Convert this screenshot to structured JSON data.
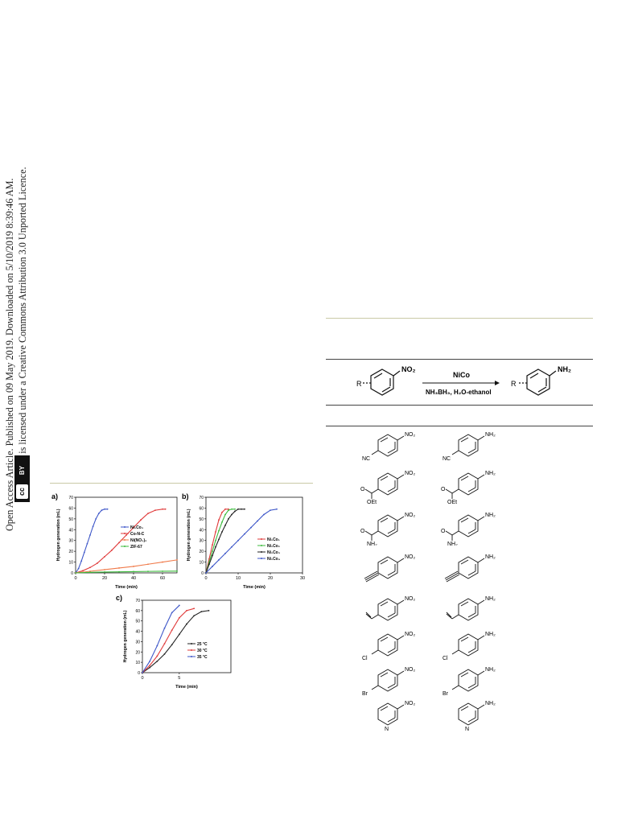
{
  "side_note": {
    "line1": "Open Access Article. Published on 09 May 2019. Downloaded on 5/10/2019 8:39:46 AM.",
    "line2": "This article is licensed under a Creative Commons Attribution 3.0 Unported Licence.",
    "badge_cc": "cc",
    "badge_by": "BY"
  },
  "colors": {
    "olive_rule": "#c9c9a6",
    "table_rule": "#444444",
    "blue": "#3d56c8",
    "red": "#e03a3a",
    "black": "#222222",
    "green": "#3dbb3d",
    "orange": "#f07a4a",
    "grey_rule": "#cccccc"
  },
  "scheme": {
    "reactant_sub": "R",
    "reactant_group": "NO₂",
    "catalyst": "NiCo",
    "conditions": "NH₃BH₃, H₂O-ethanol",
    "product_sub": "R",
    "product_group": "NH₂"
  },
  "molecules": [
    {
      "reactant_sub": "NC",
      "reactant_group": "NO₂",
      "product_sub": "NC",
      "product_group": "NH₂",
      "kind": "para"
    },
    {
      "reactant_sub": "OEt",
      "reactant_group": "NO₂",
      "product_sub": "OEt",
      "product_group": "NH₂",
      "kind": "ester"
    },
    {
      "reactant_sub": "NH₂",
      "reactant_group": "NO₂",
      "product_sub": "NH₂",
      "product_group": "NH₂",
      "kind": "amide"
    },
    {
      "reactant_sub": "",
      "reactant_group": "NO₂",
      "product_sub": "",
      "product_group": "NH₂",
      "kind": "alkyne"
    },
    {
      "reactant_sub": "",
      "reactant_group": "NO₂",
      "product_sub": "",
      "product_group": "NH₂",
      "kind": "vinyl"
    },
    {
      "reactant_sub": "Cl",
      "reactant_group": "NO₂",
      "product_sub": "Cl",
      "product_group": "NH₂",
      "kind": "para"
    },
    {
      "reactant_sub": "Br",
      "reactant_group": "NO₂",
      "product_sub": "Br",
      "product_group": "NH₂",
      "kind": "para"
    },
    {
      "reactant_sub": "N",
      "reactant_group": "NO₂",
      "product_sub": "N",
      "product_group": "NH₂",
      "kind": "pyridine"
    }
  ],
  "chart_data": [
    {
      "panel": "a)",
      "type": "line",
      "xlabel": "Time (min)",
      "ylabel": "Hydrogen generation (mL)",
      "xlim": [
        0,
        70
      ],
      "ylim": [
        0,
        70
      ],
      "xticks": [
        0,
        20,
        40,
        60
      ],
      "yticks": [
        0,
        10,
        20,
        30,
        40,
        50,
        60,
        70
      ],
      "legend_position": "right",
      "series": [
        {
          "name": "Ni₁Co₃",
          "color": "#3d56c8",
          "x": [
            0,
            2,
            4,
            6,
            8,
            10,
            12,
            14,
            16,
            18,
            20,
            22
          ],
          "y": [
            0,
            4,
            11,
            19,
            27,
            35,
            43,
            50,
            55,
            58,
            59,
            59
          ]
        },
        {
          "name": "Co-N-C",
          "color": "#e03a3a",
          "x": [
            0,
            5,
            10,
            15,
            20,
            25,
            30,
            35,
            40,
            45,
            50,
            55,
            60,
            62
          ],
          "y": [
            0,
            2,
            5,
            9,
            15,
            21,
            28,
            35,
            42,
            49,
            55,
            58,
            59,
            59
          ]
        },
        {
          "name": "Ni(NO₃)₂",
          "color": "#f07a4a",
          "x": [
            0,
            10,
            20,
            30,
            40,
            50,
            60,
            70
          ],
          "y": [
            0,
            1.5,
            3,
            4.5,
            6,
            8,
            10,
            12
          ]
        },
        {
          "name": "ZIF-67",
          "color": "#3dbb3d",
          "x": [
            0,
            10,
            20,
            30,
            40,
            50,
            60,
            70
          ],
          "y": [
            0,
            0.5,
            0.8,
            1,
            1.2,
            1.4,
            1.5,
            1.6
          ]
        }
      ]
    },
    {
      "panel": "b)",
      "type": "line",
      "xlabel": "Time (min)",
      "ylabel": "Hydrogen generation (mL)",
      "xlim": [
        0,
        30
      ],
      "ylim": [
        0,
        70
      ],
      "xticks": [
        0,
        10,
        20,
        30
      ],
      "yticks": [
        0,
        10,
        20,
        30,
        40,
        50,
        60,
        70
      ],
      "legend_position": "right",
      "series": [
        {
          "name": "Ni₁Co₁",
          "color": "#e03a3a",
          "x": [
            0,
            1,
            2,
            3,
            4,
            5,
            6,
            7
          ],
          "y": [
            0,
            13,
            26,
            38,
            49,
            56,
            59,
            59
          ]
        },
        {
          "name": "Ni₁Co₂",
          "color": "#3dbb3d",
          "x": [
            0,
            1,
            2,
            3,
            4,
            5,
            6,
            7,
            8,
            9
          ],
          "y": [
            0,
            10,
            20,
            30,
            39,
            47,
            54,
            58,
            59,
            59
          ]
        },
        {
          "name": "Ni₁Co₃",
          "color": "#222222",
          "x": [
            0,
            1,
            2,
            3,
            4,
            5,
            6,
            7,
            8,
            9,
            10,
            11,
            12
          ],
          "y": [
            0,
            8,
            16,
            24,
            31,
            38,
            44,
            50,
            54,
            57,
            59,
            59,
            59
          ]
        },
        {
          "name": "Ni₁Co₄",
          "color": "#3d56c8",
          "x": [
            0,
            2,
            4,
            6,
            8,
            10,
            12,
            14,
            16,
            18,
            20,
            22
          ],
          "y": [
            0,
            6,
            12,
            18,
            24,
            30,
            36,
            42,
            48,
            54,
            58,
            59
          ]
        }
      ]
    },
    {
      "panel": "c)",
      "type": "line",
      "xlabel": "Time (min)",
      "ylabel": "Hydrogen generation (mL)",
      "xlim": [
        0,
        12
      ],
      "ylim": [
        0,
        70
      ],
      "xticks": [
        0,
        5
      ],
      "yticks": [
        0,
        10,
        20,
        30,
        40,
        50,
        60,
        70
      ],
      "legend_position": "right",
      "series": [
        {
          "name": "25 °C",
          "color": "#222222",
          "x": [
            0,
            1,
            2,
            3,
            4,
            5,
            6,
            7,
            8,
            9
          ],
          "y": [
            0,
            5,
            11,
            18,
            27,
            37,
            47,
            55,
            59,
            60
          ]
        },
        {
          "name": "30 °C",
          "color": "#e03a3a",
          "x": [
            0,
            1,
            2,
            3,
            4,
            5,
            6,
            7
          ],
          "y": [
            0,
            7,
            16,
            28,
            41,
            53,
            60,
            62
          ]
        },
        {
          "name": "35 °C",
          "color": "#3d56c8",
          "x": [
            0,
            1,
            2,
            3,
            4,
            5
          ],
          "y": [
            0,
            11,
            26,
            43,
            58,
            65
          ]
        }
      ]
    }
  ]
}
